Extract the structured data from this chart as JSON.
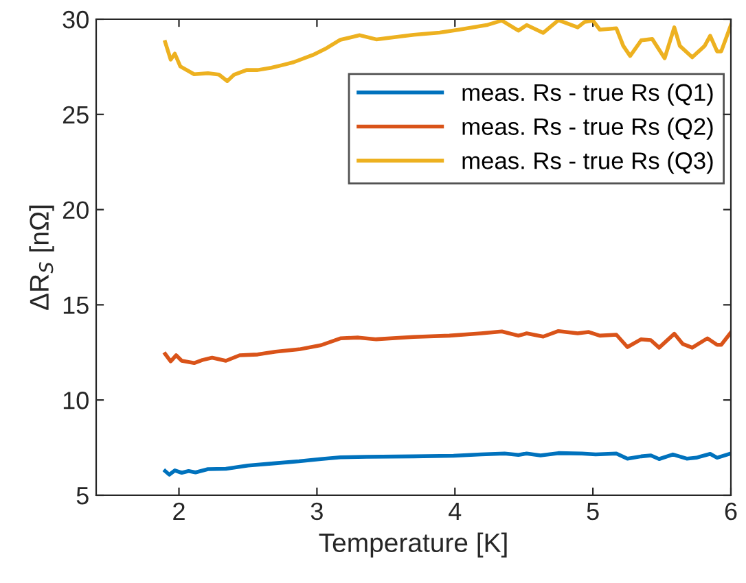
{
  "chart_data": {
    "type": "line",
    "xlabel": "Temperature [K]",
    "ylabel": "ΔR$_{S}$ [nΩ]",
    "xlim": [
      1.4,
      6
    ],
    "xticks": [
      2,
      3,
      4,
      5,
      6
    ],
    "ylim": [
      5,
      30
    ],
    "yticks": [
      5,
      10,
      15,
      20,
      25,
      30
    ],
    "grid": false,
    "legend": "top right",
    "marker": "none",
    "line_style": "solid",
    "series": [
      {
        "name": "meas. Rs - true Rs (Q1)",
        "color": "#0072bd",
        "x": [
          1.9,
          1.93,
          1.97,
          2.02,
          2.07,
          2.12,
          2.21,
          2.34,
          2.5,
          2.7,
          2.87,
          3.03,
          3.17,
          3.36,
          3.7,
          3.99,
          4.19,
          4.36,
          4.46,
          4.52,
          4.62,
          4.75,
          4.92,
          5.02,
          5.17,
          5.25,
          5.35,
          5.42,
          5.48,
          5.58,
          5.68,
          5.75,
          5.85,
          5.9,
          6.0
        ],
        "values": [
          6.27,
          6.08,
          6.3,
          6.18,
          6.27,
          6.2,
          6.37,
          6.39,
          6.56,
          6.68,
          6.78,
          6.9,
          6.99,
          7.02,
          7.04,
          7.07,
          7.14,
          7.19,
          7.12,
          7.19,
          7.09,
          7.21,
          7.19,
          7.14,
          7.19,
          6.92,
          7.04,
          7.09,
          6.9,
          7.14,
          6.92,
          6.97,
          7.17,
          6.97,
          7.19
        ]
      },
      {
        "name": "meas. Rs - true Rs (Q2)",
        "color": "#d95319",
        "x": [
          1.9,
          1.94,
          1.98,
          2.02,
          2.11,
          2.17,
          2.24,
          2.34,
          2.44,
          2.57,
          2.7,
          2.87,
          3.03,
          3.17,
          3.3,
          3.43,
          3.7,
          3.96,
          4.19,
          4.34,
          4.46,
          4.52,
          4.64,
          4.75,
          4.89,
          4.97,
          5.05,
          5.17,
          5.25,
          5.35,
          5.42,
          5.48,
          5.59,
          5.65,
          5.72,
          5.83,
          5.9,
          5.93,
          6.0
        ],
        "values": [
          12.42,
          12.03,
          12.35,
          12.06,
          11.94,
          12.1,
          12.22,
          12.06,
          12.35,
          12.39,
          12.54,
          12.66,
          12.88,
          13.24,
          13.28,
          13.19,
          13.31,
          13.38,
          13.5,
          13.6,
          13.38,
          13.5,
          13.33,
          13.62,
          13.5,
          13.57,
          13.38,
          13.43,
          12.78,
          13.19,
          13.14,
          12.75,
          13.48,
          12.95,
          12.75,
          13.24,
          12.9,
          12.9,
          13.55
        ]
      },
      {
        "name": "meas. Rs - true Rs (Q3)",
        "color": "#edb120",
        "x": [
          1.9,
          1.94,
          1.97,
          2.01,
          2.11,
          2.21,
          2.29,
          2.35,
          2.4,
          2.49,
          2.57,
          2.67,
          2.75,
          2.83,
          2.97,
          3.07,
          3.17,
          3.31,
          3.43,
          3.7,
          3.89,
          4.03,
          4.23,
          4.34,
          4.46,
          4.52,
          4.64,
          4.75,
          4.89,
          4.94,
          5.0,
          5.05,
          5.17,
          5.22,
          5.27,
          5.35,
          5.43,
          5.52,
          5.59,
          5.63,
          5.72,
          5.81,
          5.85,
          5.9,
          5.93,
          6.0
        ],
        "values": [
          28.8,
          27.88,
          28.19,
          27.52,
          27.11,
          27.16,
          27.09,
          26.75,
          27.09,
          27.33,
          27.33,
          27.45,
          27.59,
          27.74,
          28.12,
          28.48,
          28.92,
          29.16,
          28.94,
          29.18,
          29.3,
          29.45,
          29.69,
          29.93,
          29.4,
          29.69,
          29.28,
          29.95,
          29.57,
          29.86,
          29.93,
          29.45,
          29.52,
          28.6,
          28.07,
          28.89,
          28.96,
          27.95,
          29.57,
          28.6,
          28.0,
          28.6,
          29.13,
          28.31,
          28.31,
          29.69
        ]
      }
    ]
  }
}
